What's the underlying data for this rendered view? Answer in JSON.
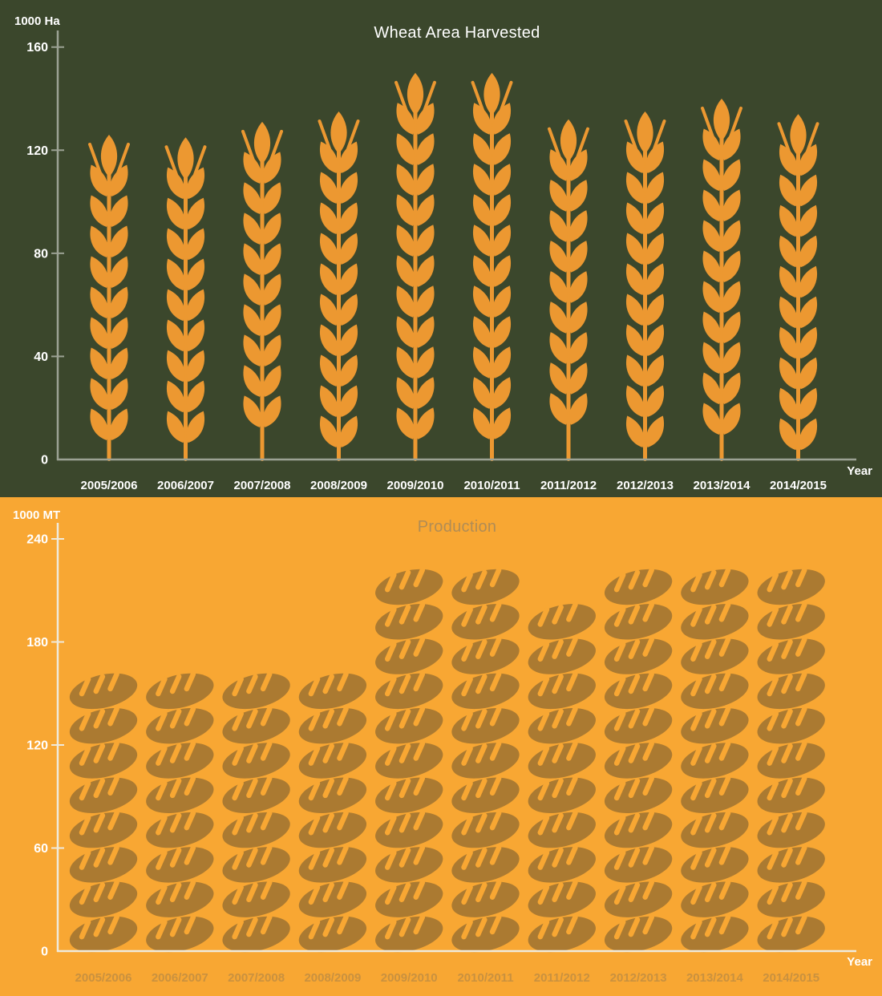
{
  "chart_data": [
    {
      "type": "bar",
      "variant": "pictograph",
      "icon": "wheat-stalk",
      "title": "Wheat Area Harvested",
      "ylabel": "1000 Ha",
      "xlabel": "Year",
      "categories": [
        "2005/2006",
        "2006/2007",
        "2007/2008",
        "2008/2009",
        "2009/2010",
        "2010/2011",
        "2011/2012",
        "2012/2013",
        "2013/2014",
        "2014/2015"
      ],
      "values": [
        126,
        125,
        131,
        135,
        150,
        150,
        132,
        135,
        140,
        134
      ],
      "ylim": [
        0,
        160
      ],
      "yticks": [
        0,
        40,
        80,
        120,
        160
      ],
      "grid": false,
      "legend": "none",
      "colors": {
        "background": "#3B472C",
        "icon": "#EC9831",
        "axis": "#9CA294",
        "tick_label": "#FFFFFF",
        "category_label": "#FFFFFF",
        "title": "#FFFFFF",
        "unit_label": "#FFFFFF",
        "xlabel_text": "#FFFFFF"
      }
    },
    {
      "type": "bar",
      "variant": "pictograph",
      "icon": "bread-loaf",
      "title": "Production",
      "ylabel": "1000 MT",
      "xlabel": "Year",
      "categories": [
        "2005/2006",
        "2006/2007",
        "2007/2008",
        "2008/2009",
        "2009/2010",
        "2010/2011",
        "2011/2012",
        "2012/2013",
        "2013/2014",
        "2014/2015"
      ],
      "values": [
        160,
        160,
        160,
        160,
        220,
        220,
        200,
        220,
        220,
        220
      ],
      "icon_counts": [
        8,
        8,
        8,
        8,
        11,
        11,
        10,
        11,
        11,
        11
      ],
      "unit_per_icon": 20,
      "ylim": [
        0,
        240
      ],
      "yticks": [
        0,
        60,
        120,
        180,
        240
      ],
      "grid": false,
      "legend": "none",
      "colors": {
        "background": "#F8A733",
        "icon": "#AB7A31",
        "icon_slash": "#F8A733",
        "axis": "#EFEADC",
        "tick_label": "#FFFFFF",
        "category_label": "#C9913F",
        "title": "#B08C55",
        "unit_label": "#FFFFFF",
        "xlabel_text": "#FFFFFF"
      }
    }
  ]
}
